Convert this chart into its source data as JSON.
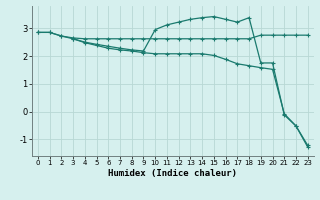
{
  "title": "",
  "xlabel": "Humidex (Indice chaleur)",
  "ylabel": "",
  "bg_color": "#d6f0ee",
  "grid_color": "#b8d8d4",
  "line_color": "#1a7a6e",
  "xlim": [
    -0.5,
    23.5
  ],
  "ylim": [
    -1.6,
    3.8
  ],
  "yticks": [
    -1,
    0,
    1,
    2,
    3
  ],
  "xticks": [
    0,
    1,
    2,
    3,
    4,
    5,
    6,
    7,
    8,
    9,
    10,
    11,
    12,
    13,
    14,
    15,
    16,
    17,
    18,
    19,
    20,
    21,
    22,
    23
  ],
  "line1_x": [
    0,
    1,
    2,
    3,
    4,
    5,
    6,
    7,
    8,
    9,
    10,
    11,
    12,
    13,
    14,
    15,
    16,
    17,
    18,
    19,
    20,
    21,
    22,
    23
  ],
  "line1_y": [
    2.85,
    2.85,
    2.72,
    2.65,
    2.62,
    2.62,
    2.62,
    2.62,
    2.62,
    2.62,
    2.62,
    2.62,
    2.62,
    2.62,
    2.62,
    2.62,
    2.62,
    2.62,
    2.62,
    2.75,
    2.75,
    2.75,
    2.75,
    2.75
  ],
  "line2_x": [
    0,
    1,
    2,
    3,
    4,
    5,
    6,
    7,
    8,
    9,
    10,
    11,
    12,
    13,
    14,
    15,
    16,
    17,
    18,
    19,
    20,
    21,
    22,
    23
  ],
  "line2_y": [
    2.85,
    2.85,
    2.72,
    2.62,
    2.5,
    2.42,
    2.35,
    2.28,
    2.22,
    2.18,
    2.95,
    3.12,
    3.22,
    3.32,
    3.38,
    3.42,
    3.32,
    3.22,
    3.38,
    1.75,
    1.75,
    -0.12,
    -0.52,
    -1.22
  ],
  "line3_x": [
    3,
    4,
    5,
    6,
    7,
    8,
    9,
    10,
    11,
    12,
    13,
    14,
    15,
    16,
    17,
    18,
    19,
    20,
    21,
    22,
    23
  ],
  "line3_y": [
    2.62,
    2.48,
    2.38,
    2.28,
    2.22,
    2.18,
    2.12,
    2.08,
    2.08,
    2.08,
    2.08,
    2.08,
    2.02,
    1.88,
    1.72,
    1.65,
    1.58,
    1.52,
    -0.08,
    -0.52,
    -1.28
  ]
}
